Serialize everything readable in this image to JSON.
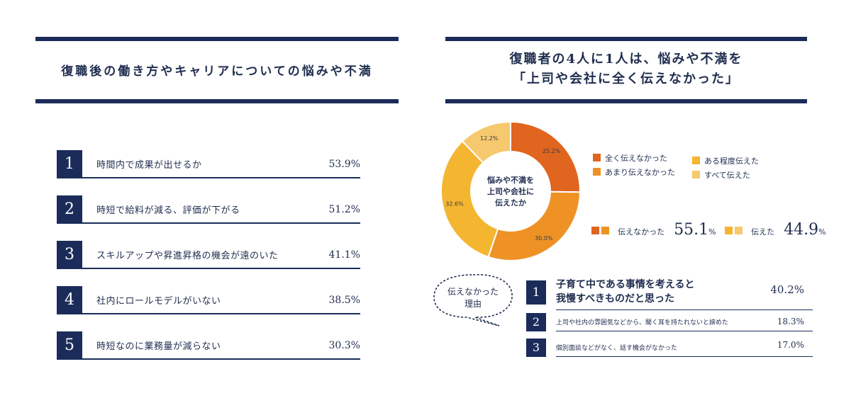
{
  "left": {
    "title": "復職後の働き方やキャリアについての悩みや不満"
  },
  "right": {
    "title_line1": "復職者の4人に1人は、悩みや不満を",
    "title_line2": "「上司や会社に全く伝えなかった」"
  },
  "chart_data": [
    {
      "type": "bar",
      "title": "復職後の働き方やキャリアについての悩みや不満",
      "categories": [
        "時間内で成果が出せるか",
        "時短で給料が減る、評価が下がる",
        "スキルアップや昇進昇格の機会が遠のいた",
        "社内にロールモデルがいない",
        "時短なのに業務量が減らない"
      ],
      "ranks": [
        "1",
        "2",
        "3",
        "4",
        "5"
      ],
      "values": [
        53.9,
        51.2,
        41.1,
        38.5,
        30.3
      ],
      "value_labels": [
        "53.9%",
        "51.2%",
        "41.1%",
        "38.5%",
        "30.3%"
      ]
    },
    {
      "type": "pie",
      "center_text": [
        "悩みや不満を",
        "上司や会社に",
        "伝えたか"
      ],
      "slices": [
        {
          "name": "全く伝えなかった",
          "value": 25.2,
          "label": "25.2%",
          "color": "#e0651f"
        },
        {
          "name": "あまり伝えなかった",
          "value": 30.0,
          "label": "30.0%",
          "color": "#ee9226"
        },
        {
          "name": "ある程度伝えた",
          "value": 32.6,
          "label": "32.6%",
          "color": "#f4b530"
        },
        {
          "name": "すべて伝えた",
          "value": 12.2,
          "label": "12.2%",
          "color": "#f6c96e"
        }
      ],
      "legend_position": "right",
      "summary": [
        {
          "label": "伝えなかった",
          "value": "55.1",
          "unit": "%",
          "colors": [
            "#e0651f",
            "#ee9226"
          ]
        },
        {
          "label": "伝えた",
          "value": "44.9",
          "unit": "%",
          "colors": [
            "#f4b530",
            "#f6c96e"
          ]
        }
      ]
    },
    {
      "type": "table",
      "bubble": [
        "伝えなかった",
        "理由"
      ],
      "rows": [
        {
          "rank": "1",
          "label_line1": "子育て中である事情を考えると",
          "label_line2": "我慢すべきものだと思った",
          "value": "40.2%"
        },
        {
          "rank": "2",
          "label_line1": "上司や社内の雰囲気などから、聞く耳を持たれないと諦めた",
          "value": "18.3%"
        },
        {
          "rank": "3",
          "label_line1": "個別面談などがなく、話す機会がなかった",
          "value": "17.0%"
        }
      ]
    }
  ]
}
